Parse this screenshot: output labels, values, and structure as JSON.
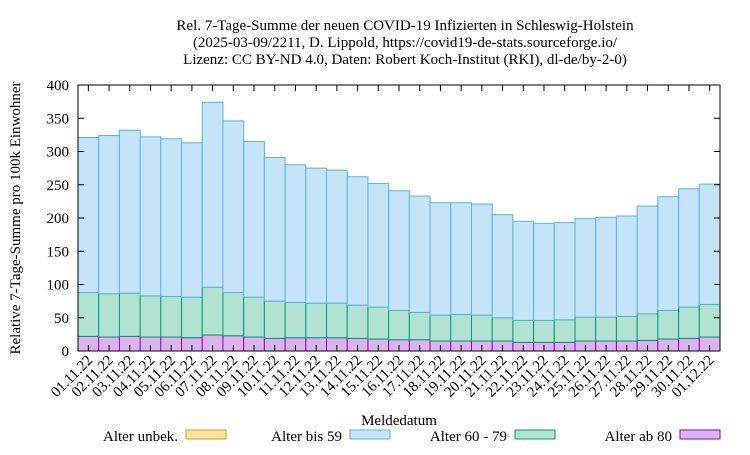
{
  "chart_data": {
    "type": "bar",
    "stacked": true,
    "title": [
      "Rel. 7-Tage-Summe der neuen COVID-19 Infizierten in Schleswig-Holstein",
      "(2025-03-09/2211, D. Lippold, https://covid19-de-stats.sourceforge.io/",
      "Lizenz: CC BY-ND 4.0, Daten: Robert Koch-Institut (RKI), dl-de/by-2-0)"
    ],
    "xlabel": "Meldedatum",
    "ylabel": "Relative 7-Tage-Summe pro 100k Einwohner",
    "ylim": [
      0,
      400
    ],
    "yticks": [
      0,
      50,
      100,
      150,
      200,
      250,
      300,
      350,
      400
    ],
    "grid": false,
    "legend_position": "bottom",
    "categories": [
      "01.11.22",
      "02.11.22",
      "03.11.22",
      "04.11.22",
      "05.11.22",
      "06.11.22",
      "07.11.22",
      "08.11.22",
      "09.11.22",
      "10.11.22",
      "11.11.22",
      "12.11.22",
      "13.11.22",
      "14.11.22",
      "15.11.22",
      "16.11.22",
      "17.11.22",
      "18.11.22",
      "19.11.22",
      "20.11.22",
      "21.11.22",
      "22.11.22",
      "23.11.22",
      "24.11.22",
      "25.11.22",
      "26.11.22",
      "27.11.22",
      "28.11.22",
      "29.11.22",
      "30.11.22",
      "01.12.22"
    ],
    "series": [
      {
        "name": "Alter unbek.",
        "fill": "#fbe2a6",
        "stroke": "#e69f00",
        "values": [
          0,
          0,
          0,
          0,
          0,
          0,
          0,
          0,
          0,
          0,
          0,
          0,
          0,
          0,
          0,
          0,
          0,
          0,
          0,
          0,
          0,
          0,
          0,
          0,
          0,
          0,
          0,
          0,
          0,
          0,
          0
        ]
      },
      {
        "name": "Alter ab 80",
        "fill": "#dbb4ef",
        "stroke": "#9400d3",
        "values": [
          22,
          21,
          22,
          21,
          21,
          20,
          24,
          23,
          21,
          19,
          20,
          20,
          20,
          19,
          18,
          17,
          17,
          15,
          15,
          15,
          15,
          13,
          13,
          13,
          15,
          15,
          15,
          16,
          18,
          19,
          21
        ]
      },
      {
        "name": "Alter 60 - 79",
        "fill": "#b2e2d2",
        "stroke": "#009e73",
        "values": [
          66,
          65,
          65,
          62,
          61,
          61,
          72,
          65,
          60,
          56,
          53,
          52,
          52,
          50,
          48,
          44,
          41,
          39,
          40,
          39,
          35,
          33,
          33,
          34,
          36,
          36,
          37,
          40,
          43,
          47,
          49
        ]
      },
      {
        "name": "Alter bis 59",
        "fill": "#c6e4f8",
        "stroke": "#56b4e9",
        "values": [
          233,
          238,
          245,
          239,
          237,
          232,
          278,
          258,
          234,
          216,
          207,
          203,
          200,
          193,
          186,
          180,
          175,
          169,
          168,
          167,
          155,
          149,
          146,
          146,
          148,
          150,
          151,
          162,
          171,
          178,
          181
        ]
      }
    ],
    "legend_order": [
      "Alter unbek.",
      "Alter bis 59",
      "Alter 60 - 79",
      "Alter ab 80"
    ]
  }
}
